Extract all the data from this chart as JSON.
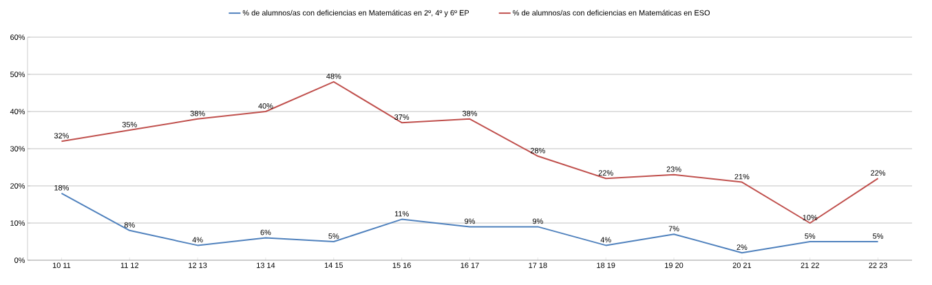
{
  "chart_data": {
    "type": "line",
    "categories": [
      "10 11",
      "11 12",
      "12 13",
      "13 14",
      "14 15",
      "15 16",
      "16 17",
      "17 18",
      "18 19",
      "19 20",
      "20 21",
      "21 22",
      "22 23"
    ],
    "series": [
      {
        "name": "% de alumnos/as con deficiencias en  Matemáticas en 2º, 4º y 6º EP",
        "color": "#4f81bd",
        "values": [
          18,
          8,
          4,
          6,
          5,
          11,
          9,
          9,
          4,
          7,
          2,
          5,
          5
        ],
        "value_labels": [
          "18%",
          "8%",
          "4%",
          "6%",
          "5%",
          "11%",
          "9%",
          "9%",
          "4%",
          "7%",
          "2%",
          "5%",
          "5%"
        ]
      },
      {
        "name": "% de alumnos/as con deficiencias en  Matemáticas en ESO",
        "color": "#c0504d",
        "values": [
          32,
          35,
          38,
          40,
          48,
          37,
          38,
          28,
          22,
          23,
          21,
          10,
          22
        ],
        "value_labels": [
          "32%",
          "35%",
          "38%",
          "40%",
          "48%",
          "37%",
          "38%",
          "28%",
          "22%",
          "23%",
          "21%",
          "10%",
          "22%"
        ]
      }
    ],
    "ylim": [
      0,
      60
    ],
    "yticks": [
      {
        "value": 0,
        "label": "0%"
      },
      {
        "value": 10,
        "label": "10%"
      },
      {
        "value": 20,
        "label": "20%"
      },
      {
        "value": 30,
        "label": "30%"
      },
      {
        "value": 40,
        "label": "40%"
      },
      {
        "value": 50,
        "label": "50%"
      },
      {
        "value": 60,
        "label": "60%"
      }
    ],
    "grid": "y",
    "legend": "top",
    "marker": "none",
    "line_style": "solid"
  }
}
